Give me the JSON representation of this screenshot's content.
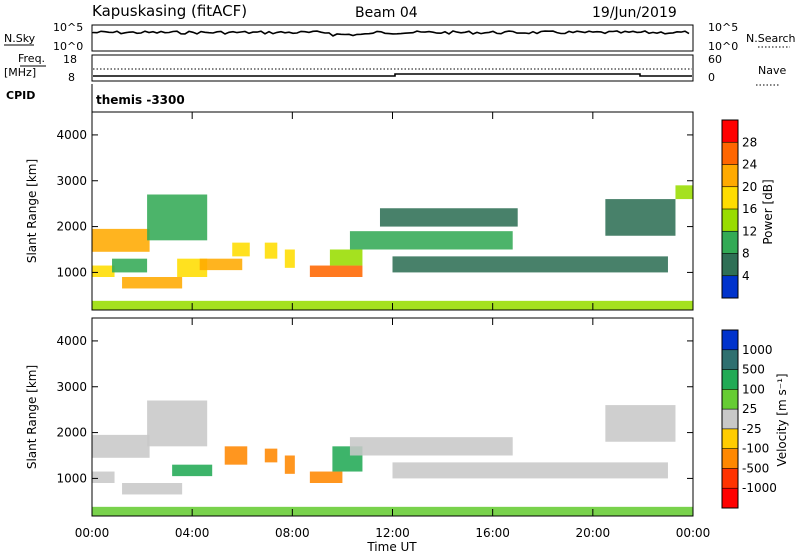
{
  "header": {
    "station": "Kapuskasing (fitACF)",
    "beam": "Beam 04",
    "date": "19/Jun/2019"
  },
  "top_panels": {
    "nsky_label": "N.Sky",
    "nsky_ticks": [
      "10^5",
      "10^0"
    ],
    "nsearch_label": "N.Search",
    "freq_label": "Freq.",
    "freq_unit": "[MHz]",
    "freq_ticks": [
      "18",
      "8"
    ],
    "nave_label": "Nave",
    "nave_ticks": [
      "60",
      "0"
    ],
    "cpid_label": "CPID",
    "cpid_value": "themis -3300"
  },
  "axes": {
    "x_label": "Time UT",
    "x_ticks": [
      "00:00",
      "04:00",
      "08:00",
      "12:00",
      "16:00",
      "20:00",
      "00:00"
    ],
    "x_hours": [
      0,
      4,
      8,
      12,
      16,
      20,
      24
    ],
    "y_label": "Slant Range [km]",
    "y_ticks": [
      "1000",
      "2000",
      "3000",
      "4000"
    ],
    "y_values": [
      1000,
      2000,
      3000,
      4000
    ],
    "y_range": [
      180,
      4500
    ],
    "x_range": [
      0,
      24
    ]
  },
  "power_colorbar": {
    "label": "Power [dB]",
    "ticks": [
      "28",
      "24",
      "20",
      "16",
      "12",
      "8",
      "4"
    ],
    "colors": [
      "#ff0000",
      "#ff6600",
      "#ffaa00",
      "#ffdd00",
      "#99dd00",
      "#33aa55",
      "#2f6f55",
      "#0033cc",
      "#0000ff"
    ]
  },
  "velocity_colorbar": {
    "label": "Velocity [m s⁻¹]",
    "ticks": [
      "1000",
      "500",
      "100",
      "25",
      "-25",
      "-100",
      "-500",
      "-1000"
    ],
    "colors": [
      "#0033cc",
      "#2f7070",
      "#22aa55",
      "#66cc33",
      "#c8c8c8",
      "#ffcc00",
      "#ff8800",
      "#ff3300",
      "#ff0000"
    ]
  },
  "chart_data": [
    {
      "type": "heatmap",
      "title": "Power [dB]",
      "xlabel": "Time UT",
      "ylabel": "Slant Range [km]",
      "xlim": [
        0,
        24
      ],
      "ylim": [
        180,
        4500
      ],
      "regions": [
        {
          "t0": 0.0,
          "t1": 2.3,
          "r0": 1450,
          "r1": 1950,
          "value": 22
        },
        {
          "t0": 0.0,
          "t1": 0.9,
          "r0": 900,
          "r1": 1150,
          "value": 18
        },
        {
          "t0": 0.8,
          "t1": 2.2,
          "r0": 1000,
          "r1": 1300,
          "value": 10
        },
        {
          "t0": 1.2,
          "t1": 3.6,
          "r0": 650,
          "r1": 900,
          "value": 22
        },
        {
          "t0": 2.2,
          "t1": 4.6,
          "r0": 1700,
          "r1": 2700,
          "value": 10
        },
        {
          "t0": 3.4,
          "t1": 4.6,
          "r0": 900,
          "r1": 1300,
          "value": 20
        },
        {
          "t0": 4.3,
          "t1": 6.0,
          "r0": 1050,
          "r1": 1300,
          "value": 22
        },
        {
          "t0": 5.6,
          "t1": 6.3,
          "r0": 1350,
          "r1": 1650,
          "value": 20
        },
        {
          "t0": 6.9,
          "t1": 7.4,
          "r0": 1300,
          "r1": 1650,
          "value": 18
        },
        {
          "t0": 7.7,
          "t1": 8.1,
          "r0": 1100,
          "r1": 1500,
          "value": 18
        },
        {
          "t0": 8.7,
          "t1": 10.8,
          "r0": 900,
          "r1": 1150,
          "value": 26
        },
        {
          "t0": 9.5,
          "t1": 10.8,
          "r0": 1150,
          "r1": 1500,
          "value": 14
        },
        {
          "t0": 10.3,
          "t1": 16.8,
          "r0": 1500,
          "r1": 1900,
          "value": 10
        },
        {
          "t0": 12.0,
          "t1": 23.0,
          "r0": 1000,
          "r1": 1350,
          "value": 8
        },
        {
          "t0": 11.5,
          "t1": 17.0,
          "r0": 2000,
          "r1": 2400,
          "value": 6
        },
        {
          "t0": 20.5,
          "t1": 23.3,
          "r0": 1800,
          "r1": 2600,
          "value": 6
        },
        {
          "t0": 23.3,
          "t1": 24.0,
          "r0": 2600,
          "r1": 2900,
          "value": 14
        },
        {
          "t0": 0.0,
          "t1": 24.0,
          "r0": 180,
          "r1": 380,
          "value": 14
        }
      ]
    },
    {
      "type": "heatmap",
      "title": "Velocity [m s⁻¹]",
      "xlabel": "Time UT",
      "ylabel": "Slant Range [km]",
      "xlim": [
        0,
        24
      ],
      "ylim": [
        180,
        4500
      ],
      "regions": [
        {
          "t0": 0.0,
          "t1": 2.3,
          "r0": 1450,
          "r1": 1950,
          "value": 0
        },
        {
          "t0": 0.0,
          "t1": 0.9,
          "r0": 900,
          "r1": 1150,
          "value": 0
        },
        {
          "t0": 1.2,
          "t1": 3.6,
          "r0": 650,
          "r1": 900,
          "value": 0
        },
        {
          "t0": 2.2,
          "t1": 4.6,
          "r0": 1700,
          "r1": 2700,
          "value": 0
        },
        {
          "t0": 3.2,
          "t1": 4.8,
          "r0": 1050,
          "r1": 1300,
          "value": 150
        },
        {
          "t0": 5.3,
          "t1": 6.2,
          "r0": 1300,
          "r1": 1700,
          "value": -300
        },
        {
          "t0": 6.9,
          "t1": 7.4,
          "r0": 1350,
          "r1": 1650,
          "value": -200
        },
        {
          "t0": 7.7,
          "t1": 8.1,
          "r0": 1100,
          "r1": 1500,
          "value": -150
        },
        {
          "t0": 8.7,
          "t1": 10.0,
          "r0": 900,
          "r1": 1150,
          "value": -200
        },
        {
          "t0": 9.6,
          "t1": 10.8,
          "r0": 1150,
          "r1": 1700,
          "value": 400
        },
        {
          "t0": 10.3,
          "t1": 16.8,
          "r0": 1500,
          "r1": 1900,
          "value": 0
        },
        {
          "t0": 12.0,
          "t1": 23.0,
          "r0": 1000,
          "r1": 1350,
          "value": 0
        },
        {
          "t0": 20.5,
          "t1": 23.3,
          "r0": 1800,
          "r1": 2600,
          "value": 0
        },
        {
          "t0": 0.0,
          "t1": 24.0,
          "r0": 180,
          "r1": 380,
          "value": 80
        }
      ]
    }
  ]
}
